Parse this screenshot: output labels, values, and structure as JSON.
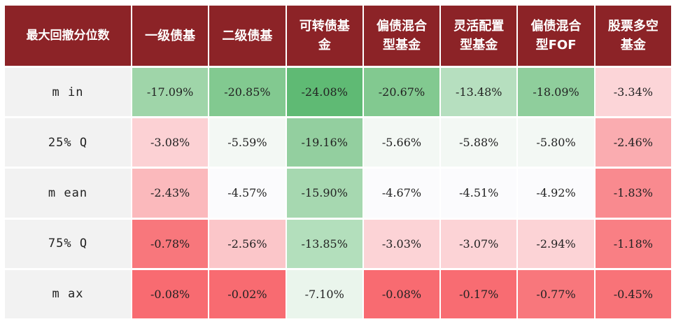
{
  "table": {
    "header": [
      "最大回撤分位数",
      "一级债基",
      "二级债基",
      "可转债基\n金",
      "偏债混合\n型基金",
      "灵活配置\n型基金",
      "偏债混合\n型FOF",
      "股票多空\n基金"
    ],
    "rows": [
      {
        "label": "m in",
        "cells": [
          "-17.09%",
          "-20.85%",
          "-24.08%",
          "-20.67%",
          "-13.48%",
          "-18.09%",
          "-3.34%"
        ],
        "colors": [
          "#9fd5a9",
          "#82c990",
          "#5fba74",
          "#82c990",
          "#b6dfbf",
          "#8fce9c",
          "#fcd5d8"
        ]
      },
      {
        "label": "25% Q",
        "cells": [
          "-3.08%",
          "-5.59%",
          "-19.16%",
          "-5.66%",
          "-5.88%",
          "-5.80%",
          "-2.46%"
        ],
        "colors": [
          "#fcd1d4",
          "#f3f8f4",
          "#93cf9f",
          "#f3f8f4",
          "#f3f8f4",
          "#f3f8f4",
          "#faacb0"
        ]
      },
      {
        "label": "m ean",
        "cells": [
          "-2.43%",
          "-4.57%",
          "-15.90%",
          "-4.67%",
          "-4.51%",
          "-4.92%",
          "-1.83%"
        ],
        "colors": [
          "#fbb9bc",
          "#fbfbfd",
          "#a6d8b0",
          "#fbfbfd",
          "#fbfbfd",
          "#fbfbfd",
          "#f98a8f"
        ]
      },
      {
        "label": "75% Q",
        "cells": [
          "-0.78%",
          "-2.56%",
          "-13.85%",
          "-3.03%",
          "-3.07%",
          "-2.94%",
          "-1.18%"
        ],
        "colors": [
          "#f8777c",
          "#fbc6c9",
          "#b3dfbc",
          "#fcd3d6",
          "#fcd3d6",
          "#fcd3d6",
          "#f97f84"
        ]
      },
      {
        "label": "m ax",
        "cells": [
          "-0.08%",
          "-0.02%",
          "-7.10%",
          "-0.08%",
          "-0.17%",
          "-0.77%",
          "-0.45%"
        ],
        "colors": [
          "#f86b71",
          "#f86b71",
          "#eaf5ec",
          "#f86b71",
          "#f86c72",
          "#f8777c",
          "#f87378"
        ]
      }
    ]
  }
}
